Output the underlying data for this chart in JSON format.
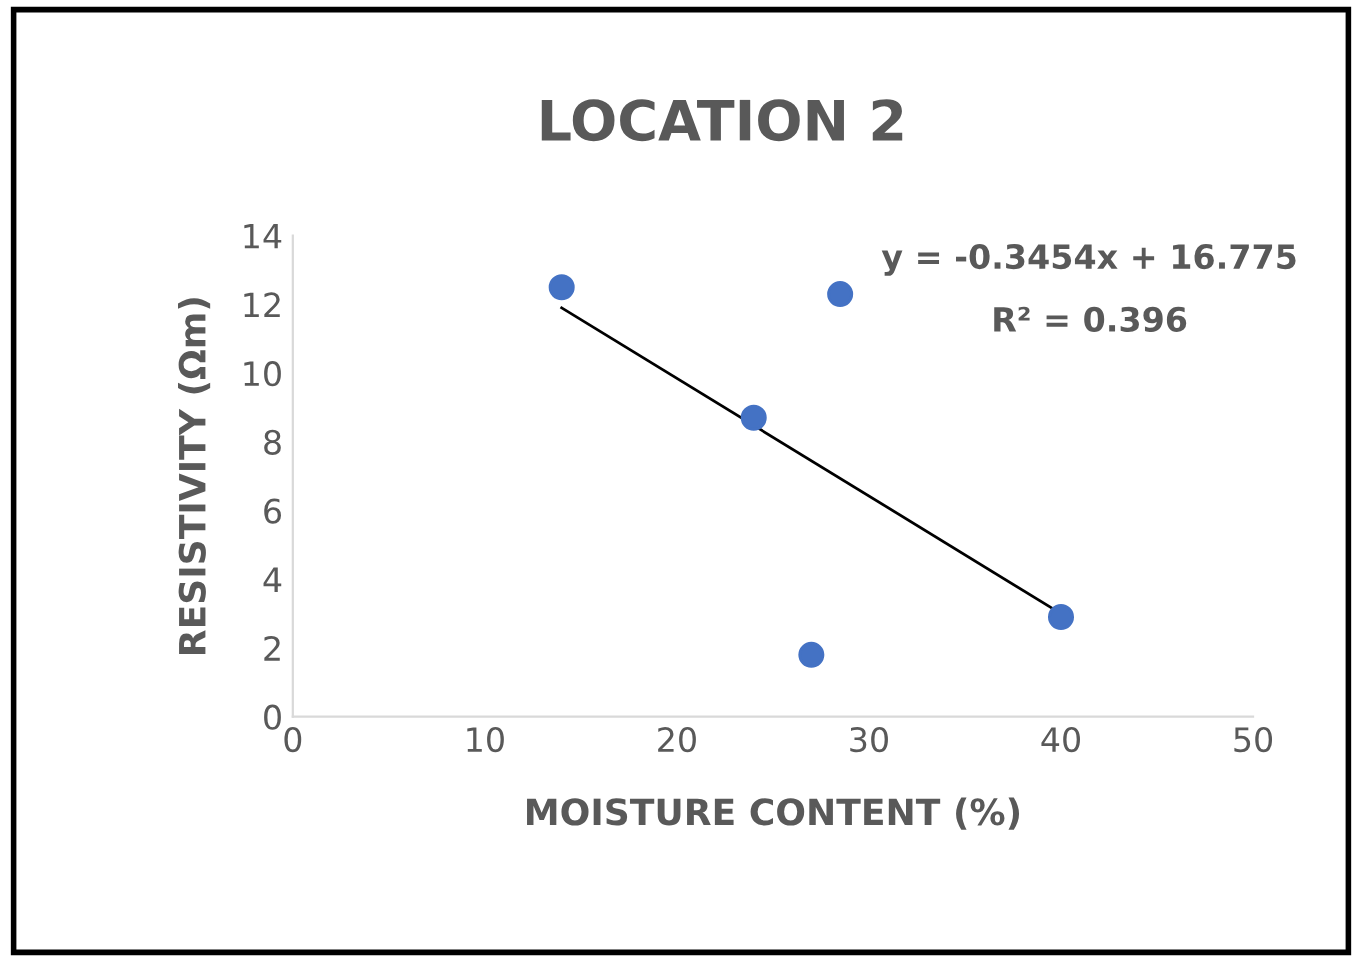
{
  "chart_data": {
    "type": "scatter",
    "title": "LOCATION 2",
    "xlabel": "MOISTURE CONTENT (%)",
    "ylabel": "RESISTIVITY (Ωm)",
    "annotations": [
      "y = -0.3454x + 16.775",
      "R² = 0.396"
    ],
    "series": [
      {
        "color": "#4472c4",
        "x": [
          14,
          24,
          27,
          28.5,
          40
        ],
        "values": [
          12.5,
          8.7,
          1.8,
          12.3,
          2.9
        ],
        "marker": "circle"
      },
      {
        "type": "line",
        "color": "#000000",
        "x": [
          14,
          40
        ],
        "values": [
          11.9,
          3.0
        ],
        "marker": "none",
        "line_style": "solid"
      }
    ],
    "xlim": [
      0,
      50
    ],
    "xticks": [
      0,
      10,
      20,
      30,
      40,
      50
    ],
    "ylim": [
      0,
      14
    ],
    "yticks": [
      0,
      2,
      4,
      6,
      8,
      10,
      12,
      14
    ],
    "grid": false,
    "legend": false
  }
}
